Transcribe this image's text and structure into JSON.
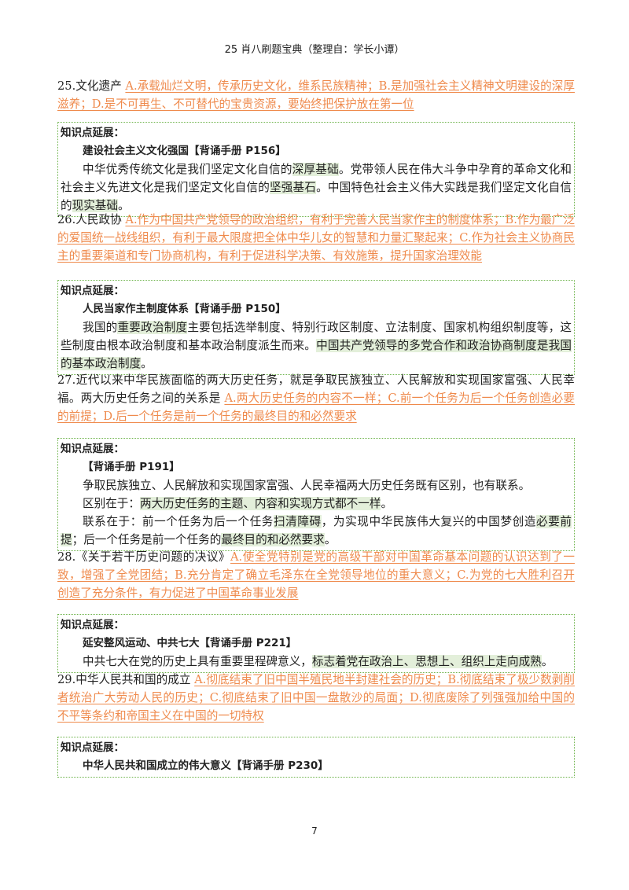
{
  "header": "25 肖八刷题宝典（整理自：学长小谭）",
  "page_number": "7",
  "colors": {
    "answer": "#ef8a4c",
    "highlight": "#e3efda",
    "box_border": "#6db34a"
  },
  "items": [
    {
      "stem": "25.文化遗产 ",
      "answer": "A.承载灿烂文明，传承历史文化，维系民族精神；B.是加强社会主义精神文明建设的深厚滋养；D.是不可再生、不可替代的宝贵资源，要始终把保护放在第一位",
      "box": {
        "label": "知识点延展：",
        "title": "建设社会主义文化强国【背诵手册 P156】",
        "paragraphs": [
          [
            {
              "t": "中华优秀传统文化是我们坚定文化自信的"
            },
            {
              "t": "深厚基础",
              "hl": true
            },
            {
              "t": "。党带领人民在伟大斗争中孕育的革命文化和社会主义先进文化是我们坚定文化自信的"
            },
            {
              "t": "坚强基石",
              "hl": true
            },
            {
              "t": "。中国特色社会主义伟大实践是我们坚定文化自信的"
            },
            {
              "t": "现实基础",
              "hl": true
            },
            {
              "t": "。"
            }
          ]
        ]
      }
    },
    {
      "stem": "26.人民政协 ",
      "answer": "A.作为中国共产党领导的政治组织，有利于完善人民当家作主的制度体系；B.作为最广泛的爱国统一战线组织，有利于最大限度把全体中华儿女的智慧和力量汇聚起来；C.作为社会主义协商民主的重要渠道和专门协商机构，有利于促进科学决策、有效施策，提升国家治理效能",
      "box": {
        "label": "知识点延展：",
        "title": "人民当家作主制度体系【背诵手册 P150】",
        "paragraphs": [
          [
            {
              "t": "我国的"
            },
            {
              "t": "重要政治制度",
              "hl": true
            },
            {
              "t": "主要包括选举制度、特别行政区制度、立法制度、国家机构组织制度等，这些制度由根本政治制度和基本政治制度派生而来。"
            },
            {
              "t": "中国共产党领导的多党合作和政治协商制度是我国的基本政治制度",
              "hl": true
            },
            {
              "t": "。"
            }
          ]
        ]
      }
    },
    {
      "stem": "27.近代以来中华民族面临的两大历史任务，就是争取民族独立、人民解放和实现国家富强、人民幸福。两大历史任务之间的关系是 ",
      "answer": "A.两大历史任务的内容不一样；C.前一个任务为后一个任务创造必要的前提；D.后一个任务是前一个任务的最终目的和必然要求",
      "box": {
        "label": "知识点延展：",
        "title": "【背诵手册 P191】",
        "paragraphs": [
          [
            {
              "t": "争取民族独立、人民解放和实现国家富强、人民幸福两大历史任务既有区别，也有联系。"
            }
          ],
          [
            {
              "t": "区别在于："
            },
            {
              "t": "两大历史任务的主题、内容和实现方式都不一样",
              "hl": true
            },
            {
              "t": "。"
            }
          ],
          [
            {
              "t": "联系在于：前一个任务为后一个任务"
            },
            {
              "t": "扫清障碍",
              "hl": true
            },
            {
              "t": "，为实现中华民族伟大复兴的中国梦创造"
            },
            {
              "t": "必要前提",
              "hl": true
            },
            {
              "t": "；后一个任务是前一个任务的"
            },
            {
              "t": "最终目的和必然要求",
              "hl": true
            },
            {
              "t": "。"
            }
          ]
        ]
      }
    },
    {
      "stem": "28.《关于若干历史问题的决议》",
      "answer": "A.使全党特别是党的高级干部对中国革命基本问题的认识达到了一致，增强了全党团结；B.充分肯定了确立毛泽东在全党领导地位的重大意义；C.为党的七大胜利召开创造了充分条件，有力促进了中国革命事业发展",
      "box": {
        "label": "知识点延展：",
        "title": "延安整风运动、中共七大【背诵手册 P221】",
        "paragraphs": [
          [
            {
              "t": "中共七大在党的历史上具有重要里程碑意义，"
            },
            {
              "t": "标志着党在政治上、思想上、组织上走向成熟",
              "hl": true
            },
            {
              "t": "。"
            }
          ]
        ]
      }
    },
    {
      "stem": "29.中华人民共和国的成立 ",
      "answer": "A.彻底结束了旧中国半殖民地半封建社会的历史；B.彻底结束了极少数剥削者统治广大劳动人民的历史；C.彻底结束了旧中国一盘散沙的局面；D.彻底废除了列强强加给中国的不平等条约和帝国主义在中国的一切特权",
      "box": {
        "label": "知识点延展：",
        "title": "中华人民共和国成立的伟大意义【背诵手册 P230】",
        "paragraphs": []
      }
    }
  ]
}
